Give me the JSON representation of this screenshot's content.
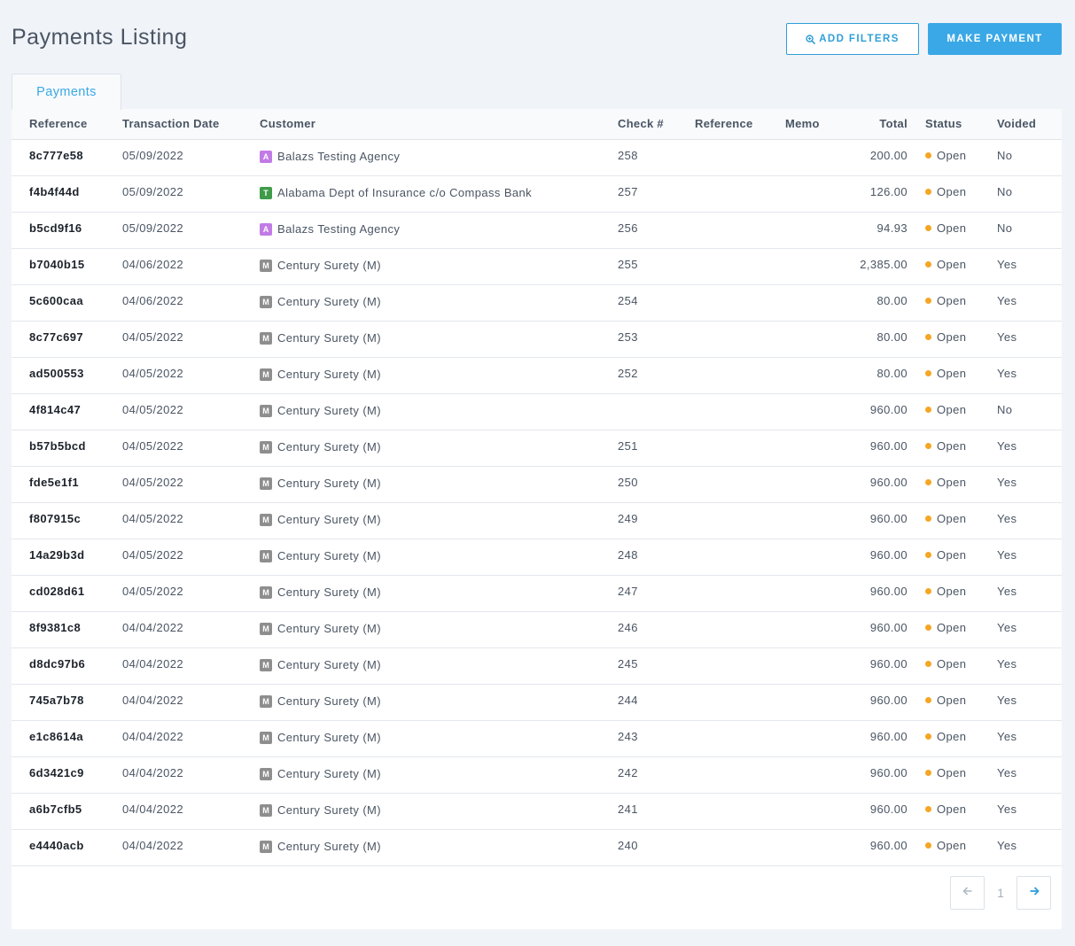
{
  "page": {
    "title": "Payments Listing"
  },
  "toolbar": {
    "filters_label": "ADD FILTERS",
    "filters_icon": "zoom-in-icon",
    "payment_label": "MAKE PAYMENT"
  },
  "tabs": [
    {
      "label": "Payments",
      "active": true
    }
  ],
  "colors": {
    "accent": "#3aa8e6",
    "status_open": "#f5a623",
    "badge_A": "#c27be6",
    "badge_T": "#3f9b4a",
    "badge_M": "#8e8e8e"
  },
  "table": {
    "columns": [
      "Reference",
      "Transaction Date",
      "Customer",
      "Check #",
      "Reference",
      "Memo",
      "Total",
      "Status",
      "Voided"
    ],
    "rows": [
      {
        "ref": "8c777e58",
        "date": "05/09/2022",
        "badge": "A",
        "customer": "Balazs Testing Agency",
        "check": "258",
        "reference": "",
        "memo": "",
        "total": "200.00",
        "status": "Open",
        "voided": "No"
      },
      {
        "ref": "f4b4f44d",
        "date": "05/09/2022",
        "badge": "T",
        "customer": "Alabama Dept of Insurance c/o Compass Bank",
        "check": "257",
        "reference": "",
        "memo": "",
        "total": "126.00",
        "status": "Open",
        "voided": "No"
      },
      {
        "ref": "b5cd9f16",
        "date": "05/09/2022",
        "badge": "A",
        "customer": "Balazs Testing Agency",
        "check": "256",
        "reference": "",
        "memo": "",
        "total": "94.93",
        "status": "Open",
        "voided": "No"
      },
      {
        "ref": "b7040b15",
        "date": "04/06/2022",
        "badge": "M",
        "customer": "Century Surety (M)",
        "check": "255",
        "reference": "",
        "memo": "",
        "total": "2,385.00",
        "status": "Open",
        "voided": "Yes"
      },
      {
        "ref": "5c600caa",
        "date": "04/06/2022",
        "badge": "M",
        "customer": "Century Surety (M)",
        "check": "254",
        "reference": "",
        "memo": "",
        "total": "80.00",
        "status": "Open",
        "voided": "Yes"
      },
      {
        "ref": "8c77c697",
        "date": "04/05/2022",
        "badge": "M",
        "customer": "Century Surety (M)",
        "check": "253",
        "reference": "",
        "memo": "",
        "total": "80.00",
        "status": "Open",
        "voided": "Yes"
      },
      {
        "ref": "ad500553",
        "date": "04/05/2022",
        "badge": "M",
        "customer": "Century Surety (M)",
        "check": "252",
        "reference": "",
        "memo": "",
        "total": "80.00",
        "status": "Open",
        "voided": "Yes"
      },
      {
        "ref": "4f814c47",
        "date": "04/05/2022",
        "badge": "M",
        "customer": "Century Surety (M)",
        "check": "",
        "reference": "",
        "memo": "",
        "total": "960.00",
        "status": "Open",
        "voided": "No"
      },
      {
        "ref": "b57b5bcd",
        "date": "04/05/2022",
        "badge": "M",
        "customer": "Century Surety (M)",
        "check": "251",
        "reference": "",
        "memo": "",
        "total": "960.00",
        "status": "Open",
        "voided": "Yes"
      },
      {
        "ref": "fde5e1f1",
        "date": "04/05/2022",
        "badge": "M",
        "customer": "Century Surety (M)",
        "check": "250",
        "reference": "",
        "memo": "",
        "total": "960.00",
        "status": "Open",
        "voided": "Yes"
      },
      {
        "ref": "f807915c",
        "date": "04/05/2022",
        "badge": "M",
        "customer": "Century Surety (M)",
        "check": "249",
        "reference": "",
        "memo": "",
        "total": "960.00",
        "status": "Open",
        "voided": "Yes"
      },
      {
        "ref": "14a29b3d",
        "date": "04/05/2022",
        "badge": "M",
        "customer": "Century Surety (M)",
        "check": "248",
        "reference": "",
        "memo": "",
        "total": "960.00",
        "status": "Open",
        "voided": "Yes"
      },
      {
        "ref": "cd028d61",
        "date": "04/05/2022",
        "badge": "M",
        "customer": "Century Surety (M)",
        "check": "247",
        "reference": "",
        "memo": "",
        "total": "960.00",
        "status": "Open",
        "voided": "Yes"
      },
      {
        "ref": "8f9381c8",
        "date": "04/04/2022",
        "badge": "M",
        "customer": "Century Surety (M)",
        "check": "246",
        "reference": "",
        "memo": "",
        "total": "960.00",
        "status": "Open",
        "voided": "Yes"
      },
      {
        "ref": "d8dc97b6",
        "date": "04/04/2022",
        "badge": "M",
        "customer": "Century Surety (M)",
        "check": "245",
        "reference": "",
        "memo": "",
        "total": "960.00",
        "status": "Open",
        "voided": "Yes"
      },
      {
        "ref": "745a7b78",
        "date": "04/04/2022",
        "badge": "M",
        "customer": "Century Surety (M)",
        "check": "244",
        "reference": "",
        "memo": "",
        "total": "960.00",
        "status": "Open",
        "voided": "Yes"
      },
      {
        "ref": "e1c8614a",
        "date": "04/04/2022",
        "badge": "M",
        "customer": "Century Surety (M)",
        "check": "243",
        "reference": "",
        "memo": "",
        "total": "960.00",
        "status": "Open",
        "voided": "Yes"
      },
      {
        "ref": "6d3421c9",
        "date": "04/04/2022",
        "badge": "M",
        "customer": "Century Surety (M)",
        "check": "242",
        "reference": "",
        "memo": "",
        "total": "960.00",
        "status": "Open",
        "voided": "Yes"
      },
      {
        "ref": "a6b7cfb5",
        "date": "04/04/2022",
        "badge": "M",
        "customer": "Century Surety (M)",
        "check": "241",
        "reference": "",
        "memo": "",
        "total": "960.00",
        "status": "Open",
        "voided": "Yes"
      },
      {
        "ref": "e4440acb",
        "date": "04/04/2022",
        "badge": "M",
        "customer": "Century Surety (M)",
        "check": "240",
        "reference": "",
        "memo": "",
        "total": "960.00",
        "status": "Open",
        "voided": "Yes"
      }
    ]
  },
  "pagination": {
    "current_page": "1",
    "prev_icon": "arrow-left-icon",
    "next_icon": "arrow-right-icon"
  }
}
